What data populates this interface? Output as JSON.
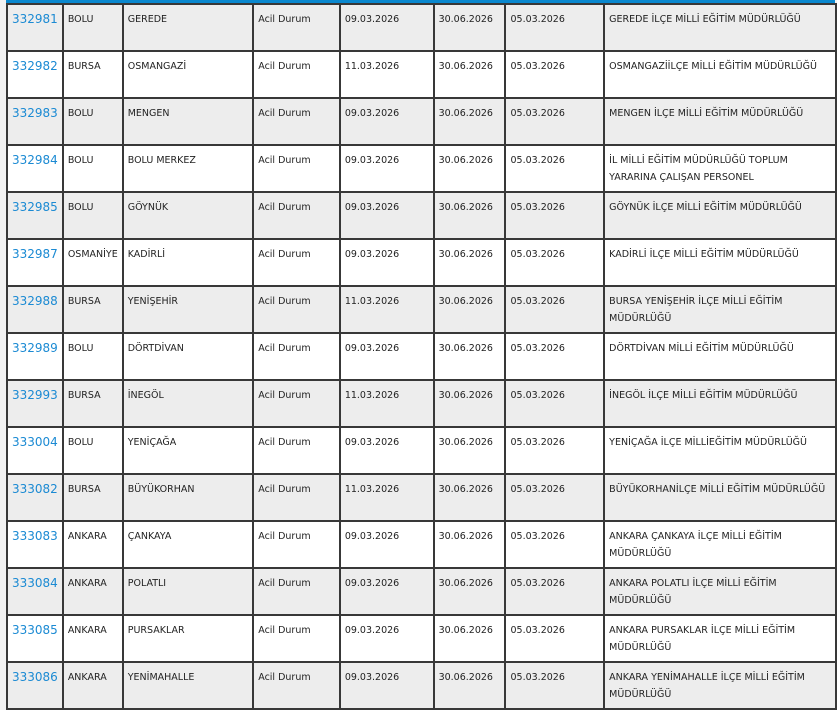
{
  "colors": {
    "header_bar": "#0a88cf",
    "link": "#1b8ad3",
    "border": "#383838"
  },
  "rows": [
    {
      "id": "332981",
      "il": "BOLU",
      "ilce": "GEREDE",
      "tur": "Acil Durum",
      "tarih1": "09.03.2026",
      "tarih2": "30.06.2026",
      "tarih3": "05.03.2026",
      "kurum": "GEREDE İLÇE MİLLİ EĞİTİM MÜDÜRLÜĞÜ"
    },
    {
      "id": "332982",
      "il": "BURSA",
      "ilce": "OSMANGAZİ",
      "tur": "Acil Durum",
      "tarih1": "11.03.2026",
      "tarih2": "30.06.2026",
      "tarih3": "05.03.2026",
      "kurum": "OSMANGAZİİLÇE MİLLİ EĞİTİM MÜDÜRLÜĞÜ"
    },
    {
      "id": "332983",
      "il": "BOLU",
      "ilce": "MENGEN",
      "tur": "Acil Durum",
      "tarih1": "09.03.2026",
      "tarih2": "30.06.2026",
      "tarih3": "05.03.2026",
      "kurum": "MENGEN İLÇE MİLLİ EĞİTİM MÜDÜRLÜĞÜ"
    },
    {
      "id": "332984",
      "il": "BOLU",
      "ilce": "BOLU MERKEZ",
      "tur": "Acil Durum",
      "tarih1": "09.03.2026",
      "tarih2": "30.06.2026",
      "tarih3": "05.03.2026",
      "kurum": "İL MİLLİ EĞİTİM MÜDÜRLÜĞÜ TOPLUM YARARINA ÇALIŞAN PERSONEL"
    },
    {
      "id": "332985",
      "il": "BOLU",
      "ilce": "GÖYNÜK",
      "tur": "Acil Durum",
      "tarih1": "09.03.2026",
      "tarih2": "30.06.2026",
      "tarih3": "05.03.2026",
      "kurum": "GÖYNÜK İLÇE MİLLİ EĞİTİM MÜDÜRLÜĞÜ"
    },
    {
      "id": "332987",
      "il": "OSMANİYE",
      "ilce": "KADİRLİ",
      "tur": "Acil Durum",
      "tarih1": "09.03.2026",
      "tarih2": "30.06.2026",
      "tarih3": "05.03.2026",
      "kurum": "KADİRLİ İLÇE MİLLİ EĞİTİM MÜDÜRLÜĞÜ"
    },
    {
      "id": "332988",
      "il": "BURSA",
      "ilce": "YENİŞEHİR",
      "tur": "Acil Durum",
      "tarih1": "11.03.2026",
      "tarih2": "30.06.2026",
      "tarih3": "05.03.2026",
      "kurum": "BURSA YENİŞEHİR İLÇE MİLLİ EĞİTİM MÜDÜRLÜĞÜ"
    },
    {
      "id": "332989",
      "il": "BOLU",
      "ilce": "DÖRTDİVAN",
      "tur": "Acil Durum",
      "tarih1": "09.03.2026",
      "tarih2": "30.06.2026",
      "tarih3": "05.03.2026",
      "kurum": "DÖRTDİVAN MİLLİ EĞİTİM MÜDÜRLÜĞÜ"
    },
    {
      "id": "332993",
      "il": "BURSA",
      "ilce": "İNEGÖL",
      "tur": "Acil Durum",
      "tarih1": "11.03.2026",
      "tarih2": "30.06.2026",
      "tarih3": "05.03.2026",
      "kurum": "İNEGÖL İLÇE MİLLİ EĞİTİM MÜDÜRLÜĞÜ"
    },
    {
      "id": "333004",
      "il": "BOLU",
      "ilce": "YENİÇAĞA",
      "tur": "Acil Durum",
      "tarih1": "09.03.2026",
      "tarih2": "30.06.2026",
      "tarih3": "05.03.2026",
      "kurum": "YENİÇAĞA İLÇE MİLLİEĞİTİM MÜDÜRLÜĞÜ"
    },
    {
      "id": "333082",
      "il": "BURSA",
      "ilce": "BÜYÜKORHAN",
      "tur": "Acil Durum",
      "tarih1": "11.03.2026",
      "tarih2": "30.06.2026",
      "tarih3": "05.03.2026",
      "kurum": "BÜYÜKORHANİLÇE MİLLİ EĞİTİM MÜDÜRLÜĞÜ"
    },
    {
      "id": "333083",
      "il": "ANKARA",
      "ilce": "ÇANKAYA",
      "tur": "Acil Durum",
      "tarih1": "09.03.2026",
      "tarih2": "30.06.2026",
      "tarih3": "05.03.2026",
      "kurum": "ANKARA ÇANKAYA İLÇE MİLLİ EĞİTİM MÜDÜRLÜĞÜ"
    },
    {
      "id": "333084",
      "il": "ANKARA",
      "ilce": "POLATLI",
      "tur": "Acil Durum",
      "tarih1": "09.03.2026",
      "tarih2": "30.06.2026",
      "tarih3": "05.03.2026",
      "kurum": "ANKARA POLATLI İLÇE MİLLİ EĞİTİM MÜDÜRLÜĞÜ"
    },
    {
      "id": "333085",
      "il": "ANKARA",
      "ilce": "PURSAKLAR",
      "tur": "Acil Durum",
      "tarih1": "09.03.2026",
      "tarih2": "30.06.2026",
      "tarih3": "05.03.2026",
      "kurum": "ANKARA PURSAKLAR İLÇE MİLLİ EĞİTİM MÜDÜRLÜĞÜ"
    },
    {
      "id": "333086",
      "il": "ANKARA",
      "ilce": "YENİMAHALLE",
      "tur": "Acil Durum",
      "tarih1": "09.03.2026",
      "tarih2": "30.06.2026",
      "tarih3": "05.03.2026",
      "kurum": "ANKARA YENİMAHALLE İLÇE MİLLİ EĞİTİM MÜDÜRLÜĞÜ"
    }
  ]
}
